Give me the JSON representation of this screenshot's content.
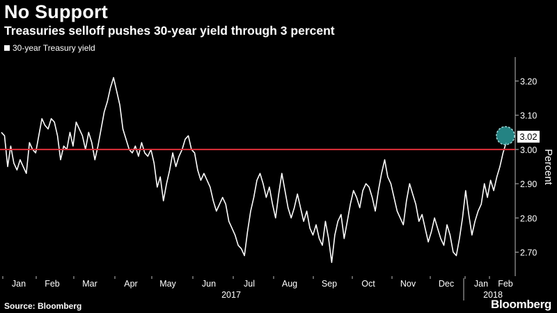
{
  "chart_data": {
    "type": "line",
    "title": "No Support",
    "subtitle": "Treasuries selloff pushes 30-year yield through 3 percent",
    "legend": "30-year Treasury yield",
    "ylabel": "Percent",
    "ylim": [
      2.63,
      3.27
    ],
    "yticks": [
      "3.20",
      "3.10",
      "3.00",
      "2.90",
      "2.80",
      "2.70"
    ],
    "xticks": [
      "Jan",
      "Feb",
      "Mar",
      "Apr",
      "May",
      "Jun",
      "Jul",
      "Aug",
      "Sep",
      "Oct",
      "Nov",
      "Dec",
      "Jan",
      "Feb"
    ],
    "years": [
      "2017",
      "2018"
    ],
    "reference_line": 3.0,
    "last_value_label": "3.02",
    "source": "Source: Bloomberg",
    "brand": "Bloomberg",
    "colors": {
      "line": "#ffffff",
      "reference": "#e0303a",
      "marker": "#2a9a9a",
      "background": "#000000"
    },
    "series": [
      {
        "name": "30-year Treasury yield",
        "values": [
          3.05,
          3.04,
          2.95,
          3.01,
          2.96,
          2.94,
          2.97,
          2.95,
          2.93,
          3.02,
          3.0,
          2.99,
          3.04,
          3.09,
          3.07,
          3.06,
          3.09,
          3.08,
          3.04,
          2.97,
          3.01,
          3.0,
          3.05,
          3.01,
          3.08,
          3.06,
          3.04,
          3.0,
          3.05,
          3.02,
          2.97,
          3.01,
          3.06,
          3.11,
          3.14,
          3.18,
          3.21,
          3.17,
          3.13,
          3.06,
          3.03,
          3.0,
          2.99,
          3.01,
          2.98,
          3.02,
          2.99,
          2.98,
          3.0,
          2.96,
          2.89,
          2.92,
          2.85,
          2.9,
          2.94,
          2.99,
          2.95,
          2.98,
          3.0,
          3.03,
          3.04,
          3.0,
          2.99,
          2.94,
          2.91,
          2.93,
          2.91,
          2.89,
          2.85,
          2.82,
          2.84,
          2.86,
          2.84,
          2.79,
          2.77,
          2.75,
          2.72,
          2.71,
          2.69,
          2.76,
          2.82,
          2.86,
          2.91,
          2.93,
          2.9,
          2.86,
          2.89,
          2.84,
          2.8,
          2.87,
          2.93,
          2.88,
          2.83,
          2.8,
          2.83,
          2.87,
          2.83,
          2.79,
          2.82,
          2.77,
          2.75,
          2.78,
          2.74,
          2.72,
          2.79,
          2.74,
          2.67,
          2.75,
          2.79,
          2.81,
          2.74,
          2.79,
          2.84,
          2.88,
          2.86,
          2.83,
          2.88,
          2.9,
          2.89,
          2.86,
          2.82,
          2.88,
          2.93,
          2.97,
          2.92,
          2.9,
          2.86,
          2.82,
          2.8,
          2.78,
          2.85,
          2.9,
          2.87,
          2.84,
          2.79,
          2.81,
          2.77,
          2.73,
          2.76,
          2.8,
          2.77,
          2.74,
          2.72,
          2.78,
          2.75,
          2.7,
          2.69,
          2.74,
          2.8,
          2.88,
          2.81,
          2.75,
          2.79,
          2.82,
          2.84,
          2.9,
          2.86,
          2.91,
          2.88,
          2.92,
          2.95,
          2.99,
          3.02
        ]
      }
    ]
  }
}
